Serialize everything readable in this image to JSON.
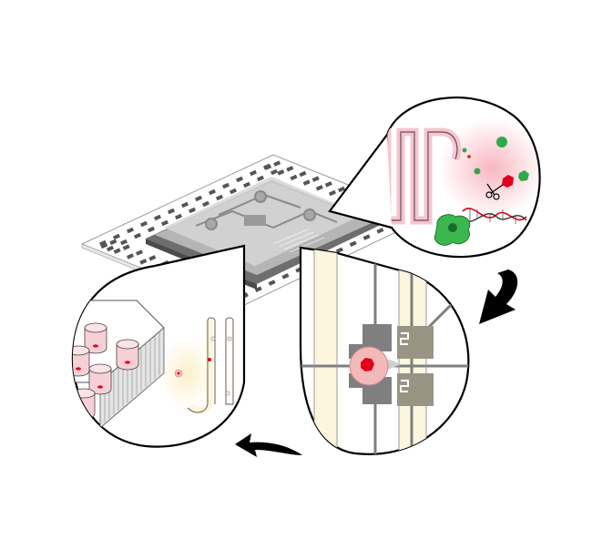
{
  "figure": {
    "description_hidden": "",
    "panels": [
      {
        "id": "chip",
        "kind": "microfluidic-chip-on-electrode-array"
      },
      {
        "id": "channel-zoom",
        "kind": "serpentine-channel-with-cells-and-dna"
      },
      {
        "id": "electrode-zoom",
        "kind": "cell-trapped-between-electrodes"
      },
      {
        "id": "wells-zoom",
        "kind": "well-plate-and-channel"
      }
    ],
    "arrows": [
      {
        "id": "arrow-right",
        "direction": "down"
      },
      {
        "id": "arrow-bottom",
        "direction": "left"
      }
    ],
    "colors": {
      "outline": "#000000",
      "chip_dark": "#6e6e6e",
      "chip_light": "#bdbdbd",
      "pad": "#555555",
      "channel_pink": "#f4c6cf",
      "cell_green": "#2faa4a",
      "cell_red": "#e0001b",
      "cream": "#fdf6df",
      "electrode_gray": "#7f7f7f"
    }
  }
}
